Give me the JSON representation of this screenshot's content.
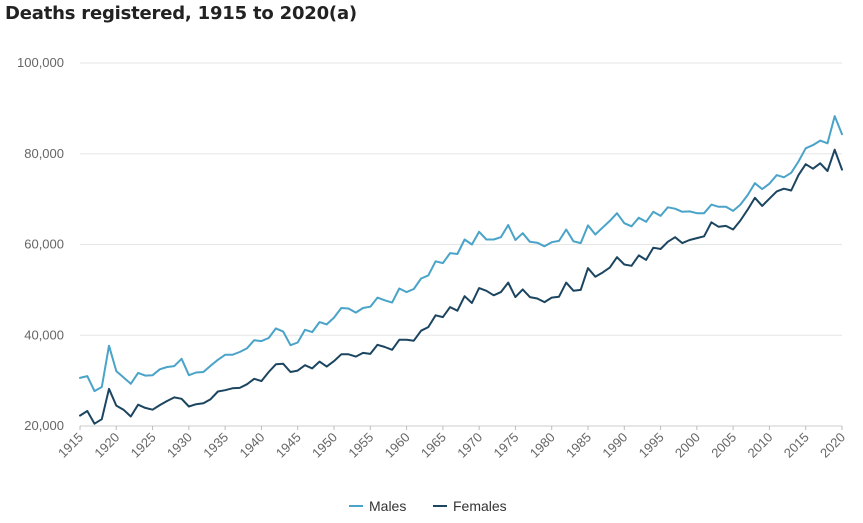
{
  "title": "Deaths registered, 1915 to 2020(a)",
  "colors": {
    "males": "#4aa3c8",
    "females": "#1b4560",
    "grid": "#e6e6e6",
    "tick": "#666666"
  },
  "chart_data": {
    "type": "line",
    "title": "Deaths registered, 1915 to 2020(a)",
    "xlabel": "",
    "ylabel": "",
    "x": [
      1915,
      1916,
      1917,
      1918,
      1919,
      1920,
      1921,
      1922,
      1923,
      1924,
      1925,
      1926,
      1927,
      1928,
      1929,
      1930,
      1931,
      1932,
      1933,
      1934,
      1935,
      1936,
      1937,
      1938,
      1939,
      1940,
      1941,
      1942,
      1943,
      1944,
      1945,
      1946,
      1947,
      1948,
      1949,
      1950,
      1951,
      1952,
      1953,
      1954,
      1955,
      1956,
      1957,
      1958,
      1959,
      1960,
      1961,
      1962,
      1963,
      1964,
      1965,
      1966,
      1967,
      1968,
      1969,
      1970,
      1971,
      1972,
      1973,
      1974,
      1975,
      1976,
      1977,
      1978,
      1979,
      1980,
      1981,
      1982,
      1983,
      1984,
      1985,
      1986,
      1987,
      1988,
      1989,
      1990,
      1991,
      1992,
      1993,
      1994,
      1995,
      1996,
      1997,
      1998,
      1999,
      2000,
      2001,
      2002,
      2003,
      2004,
      2005,
      2006,
      2007,
      2008,
      2009,
      2010,
      2011,
      2012,
      2013,
      2014,
      2015,
      2016,
      2017,
      2018,
      2019,
      2020
    ],
    "xticks": [
      1915,
      1920,
      1925,
      1930,
      1935,
      1940,
      1945,
      1950,
      1955,
      1960,
      1965,
      1970,
      1975,
      1980,
      1985,
      1990,
      1995,
      2000,
      2005,
      2010,
      2015,
      2020
    ],
    "yticks": [
      "20,000",
      "40,000",
      "60,000",
      "80,000",
      "100,000"
    ],
    "ylim": [
      20000,
      100000
    ],
    "legend_position": "bottom-center",
    "grid": true,
    "series": [
      {
        "name": "Males",
        "values": [
          30600,
          31000,
          27700,
          28600,
          37700,
          32100,
          30700,
          29300,
          31700,
          31100,
          31200,
          32500,
          33000,
          33200,
          34800,
          31200,
          31800,
          31900,
          33300,
          34600,
          35700,
          35700,
          36300,
          37100,
          38900,
          38700,
          39400,
          41500,
          40800,
          37800,
          38400,
          41200,
          40700,
          42900,
          42400,
          43900,
          46000,
          45900,
          45000,
          46000,
          46300,
          48300,
          47700,
          47200,
          50300,
          49500,
          50200,
          52500,
          53200,
          56300,
          55900,
          58100,
          57900,
          61100,
          60000,
          62800,
          61100,
          61100,
          61600,
          64300,
          61000,
          62500,
          60600,
          60400,
          59600,
          60500,
          60800,
          63300,
          60700,
          60300,
          64200,
          62200,
          63700,
          65200,
          66900,
          64700,
          64000,
          65900,
          65000,
          67200,
          66300,
          68200,
          67900,
          67200,
          67300,
          66900,
          66900,
          68800,
          68300,
          68300,
          67400,
          68800,
          70900,
          73500,
          72200,
          73400,
          75300,
          74800,
          75800,
          78300,
          81200,
          81900,
          82900,
          82300,
          88300,
          84300
        ]
      },
      {
        "name": "Females",
        "values": [
          22300,
          23300,
          20500,
          21500,
          28200,
          24500,
          23600,
          22100,
          24700,
          24000,
          23600,
          24600,
          25500,
          26300,
          26000,
          24300,
          24800,
          25000,
          25900,
          27600,
          27900,
          28300,
          28400,
          29200,
          30400,
          29900,
          31900,
          33600,
          33700,
          31900,
          32200,
          33400,
          32700,
          34200,
          33100,
          34300,
          35800,
          35800,
          35300,
          36100,
          35900,
          37900,
          37400,
          36800,
          39000,
          39000,
          38800,
          41000,
          41800,
          44400,
          44000,
          46200,
          45400,
          48600,
          47100,
          50400,
          49800,
          48800,
          49500,
          51600,
          48400,
          50100,
          48400,
          48100,
          47300,
          48300,
          48500,
          51600,
          49800,
          50000,
          54800,
          52900,
          53800,
          54900,
          57200,
          55600,
          55300,
          57600,
          56600,
          59300,
          59000,
          60600,
          61600,
          60300,
          61000,
          61400,
          61800,
          64900,
          63900,
          64100,
          63300,
          65300,
          67700,
          70300,
          68500,
          70100,
          71700,
          72300,
          71900,
          75300,
          77700,
          76700,
          77900,
          76200,
          80900,
          76500
        ]
      }
    ]
  }
}
